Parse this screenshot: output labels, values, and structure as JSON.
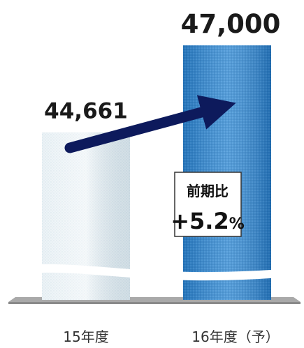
{
  "chart_data": {
    "type": "bar",
    "categories": [
      "15年度",
      "16年度（予）"
    ],
    "values": [
      44661,
      47000
    ],
    "value_labels": [
      "44,661",
      "47,000"
    ],
    "axis_break": true,
    "ylim": [
      41000,
      47000
    ],
    "grid": false,
    "colors": [
      "#e4eef3",
      "#2f86cf"
    ],
    "arrow_color": "#0d1a5c",
    "callout": {
      "title": "前期比",
      "value": "+5.2",
      "unit": "%"
    }
  }
}
